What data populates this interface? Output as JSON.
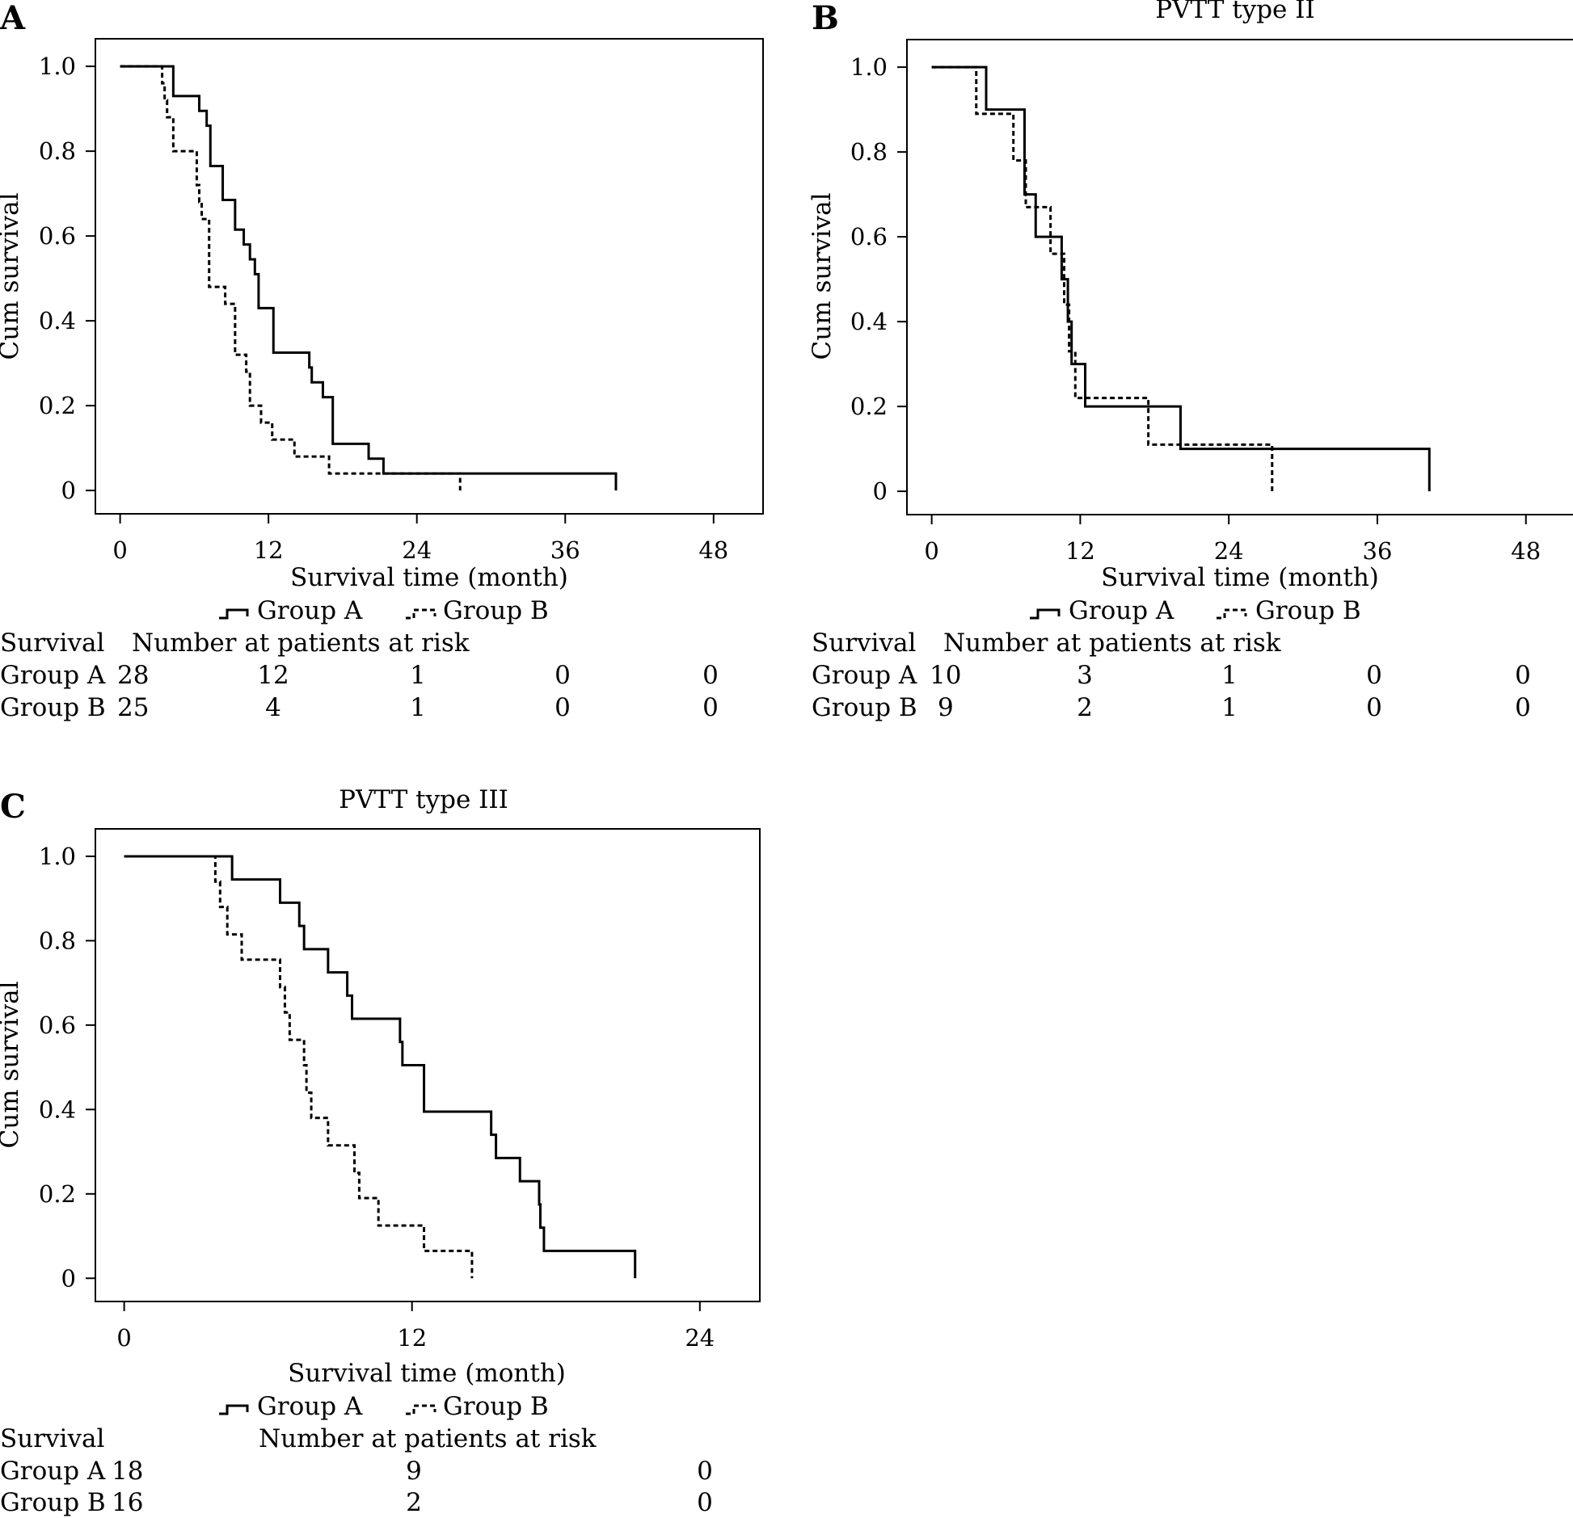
{
  "chart_data": [
    {
      "panel": "A",
      "type": "line",
      "subtype": "kaplan-meier",
      "title": "",
      "xlabel": "Survival time (month)",
      "ylabel": "Cum survival",
      "xlim": [
        -2,
        52
      ],
      "ylim": [
        -0.055,
        1.065
      ],
      "xticks": [
        0,
        12,
        24,
        36,
        48
      ],
      "yticks": [
        0,
        0.2,
        0.4,
        0.6,
        0.8,
        1.0
      ],
      "ytick_labels": [
        "0",
        "0.2",
        "0.4",
        "0.6",
        "0.8",
        "1.0"
      ],
      "legend": [
        "Group A",
        "Group B"
      ],
      "series": [
        {
          "name": "Group A",
          "style": "solid",
          "times": [
            4.3,
            6.4,
            7.0,
            7.3,
            8.3,
            9.3,
            10.0,
            10.5,
            10.9,
            11.2,
            11.7,
            12.4,
            15.3,
            15.5,
            16.4,
            17.2,
            20.1,
            21.3,
            40.1
          ],
          "survival": [
            0.93,
            0.895,
            0.86,
            0.765,
            0.685,
            0.615,
            0.58,
            0.545,
            0.51,
            0.43,
            0.43,
            0.325,
            0.29,
            0.255,
            0.22,
            0.11,
            0.075,
            0.04,
            0.04
          ],
          "end_drop": 0.0
        },
        {
          "name": "Group B",
          "style": "dashed",
          "times": [
            3.4,
            3.6,
            3.8,
            4.3,
            6.2,
            6.4,
            6.6,
            7.2,
            8.5,
            9.3,
            10.2,
            10.5,
            11.4,
            12.3,
            14.1,
            16.9,
            27.5
          ],
          "survival": [
            0.96,
            0.92,
            0.88,
            0.8,
            0.72,
            0.68,
            0.64,
            0.48,
            0.44,
            0.32,
            0.28,
            0.2,
            0.16,
            0.12,
            0.08,
            0.04,
            0.04
          ],
          "end_drop": 0.0
        }
      ],
      "risk_table": {
        "header": "Survival",
        "subheader": "Number at patients at risk",
        "rows": [
          {
            "label": "Group A",
            "values": [
              "28",
              "12",
              "1",
              "0",
              "0"
            ]
          },
          {
            "label": "Group B",
            "values": [
              "25",
              "4",
              "1",
              "0",
              "0"
            ]
          }
        ]
      }
    },
    {
      "panel": "B",
      "type": "line",
      "subtype": "kaplan-meier",
      "title": "PVTT type II",
      "xlabel": "Survival time (month)",
      "ylabel": "Cum survival",
      "xlim": [
        -2,
        52
      ],
      "ylim": [
        -0.055,
        1.065
      ],
      "xticks": [
        0,
        12,
        24,
        36,
        48
      ],
      "yticks": [
        0,
        0.2,
        0.4,
        0.6,
        0.8,
        1.0
      ],
      "ytick_labels": [
        "0",
        "0.2",
        "0.4",
        "0.6",
        "0.8",
        "1.0"
      ],
      "legend": [
        "Group A",
        "Group B"
      ],
      "series": [
        {
          "name": "Group A",
          "style": "solid",
          "times": [
            4.4,
            7.5,
            8.4,
            10.5,
            11.0,
            11.3,
            11.7,
            12.4,
            20.1,
            40.2
          ],
          "survival": [
            0.9,
            0.7,
            0.6,
            0.5,
            0.4,
            0.3,
            0.3,
            0.2,
            0.1,
            0.1
          ],
          "end_drop": 0.0
        },
        {
          "name": "Group B",
          "style": "dashed",
          "times": [
            3.6,
            6.6,
            7.6,
            9.6,
            10.7,
            11.1,
            11.6,
            17.5,
            27.5
          ],
          "survival": [
            0.89,
            0.78,
            0.67,
            0.56,
            0.44,
            0.33,
            0.22,
            0.11,
            0.11
          ],
          "end_drop": 0.0
        }
      ],
      "risk_table": {
        "header": "Survival",
        "subheader": "Number at patients at risk",
        "rows": [
          {
            "label": "Group A",
            "values": [
              "10",
              "3",
              "1",
              "0",
              "0"
            ]
          },
          {
            "label": "Group B",
            "values": [
              "9",
              "2",
              "1",
              "0",
              "0"
            ]
          }
        ]
      }
    },
    {
      "panel": "C",
      "type": "line",
      "subtype": "kaplan-meier",
      "title": "PVTT type III",
      "xlabel": "Survival time (month)",
      "ylabel": "Cum survival",
      "xlim": [
        -1.2,
        26.5
      ],
      "ylim": [
        -0.055,
        1.065
      ],
      "xticks": [
        0,
        12,
        24
      ],
      "yticks": [
        0,
        0.2,
        0.4,
        0.6,
        0.8,
        1.0
      ],
      "ytick_labels": [
        "0",
        "0.2",
        "0.4",
        "0.6",
        "0.8",
        "1.0"
      ],
      "legend": [
        "Group A",
        "Group B"
      ],
      "series": [
        {
          "name": "Group A",
          "style": "solid",
          "times": [
            4.5,
            6.5,
            7.3,
            7.5,
            8.5,
            9.3,
            9.5,
            11.5,
            11.6,
            12.5,
            15.3,
            15.5,
            16.5,
            17.3,
            17.35,
            17.5,
            21.3
          ],
          "survival": [
            0.945,
            0.89,
            0.835,
            0.78,
            0.725,
            0.67,
            0.615,
            0.56,
            0.505,
            0.395,
            0.34,
            0.285,
            0.23,
            0.175,
            0.12,
            0.065,
            0.065
          ],
          "end_drop": 0.0
        },
        {
          "name": "Group B",
          "style": "dashed",
          "times": [
            3.8,
            4.0,
            4.3,
            4.9,
            6.5,
            6.7,
            6.9,
            7.5,
            7.6,
            7.8,
            8.5,
            9.6,
            9.8,
            10.6,
            12.5,
            14.5
          ],
          "survival": [
            0.94,
            0.88,
            0.815,
            0.755,
            0.69,
            0.63,
            0.565,
            0.505,
            0.44,
            0.38,
            0.315,
            0.25,
            0.19,
            0.125,
            0.065,
            0.065
          ],
          "end_drop": 0.0
        }
      ],
      "risk_table": {
        "header": "Survival",
        "subheader": "Number at patients at risk",
        "rows": [
          {
            "label": "Group A",
            "values": [
              "18",
              "9",
              "0"
            ]
          },
          {
            "label": "Group B",
            "values": [
              "16",
              "2",
              "0"
            ]
          }
        ]
      }
    }
  ]
}
